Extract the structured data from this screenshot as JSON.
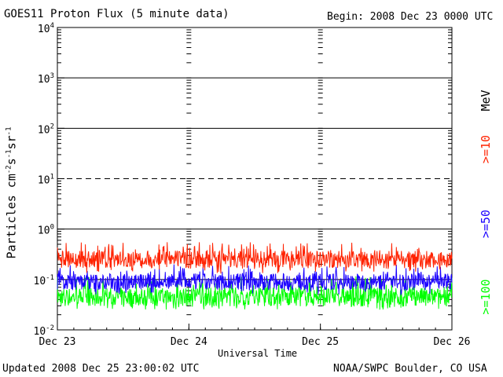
{
  "header": {
    "title": "GOES11 Proton Flux (5 minute data)",
    "begin": "Begin: 2008 Dec 23 0000 UTC"
  },
  "footer": {
    "updated": "Updated 2008 Dec 25 23:00:02 UTC",
    "credit": "NOAA/SWPC Boulder, CO USA"
  },
  "chart_data": {
    "type": "line",
    "title": "GOES11 Proton Flux (5 minute data)",
    "xlabel": "Universal Time",
    "ylabel": "Particles cm⁻²s⁻¹sr⁻¹",
    "y_scale": "log",
    "ylim": [
      0.01,
      10000
    ],
    "x_range": [
      "Dec 23",
      "Dec 26"
    ],
    "x_ticks": [
      "Dec 23",
      "Dec 24",
      "Dec 25",
      "Dec 26"
    ],
    "y_ticks": [
      {
        "value": 0.01,
        "base": "10",
        "exp": "-2"
      },
      {
        "value": 0.1,
        "base": "10",
        "exp": "-1"
      },
      {
        "value": 1,
        "base": "10",
        "exp": "0"
      },
      {
        "value": 10,
        "base": "10",
        "exp": "1"
      },
      {
        "value": 100,
        "base": "10",
        "exp": "2"
      },
      {
        "value": 1000,
        "base": "10",
        "exp": "3"
      },
      {
        "value": 10000,
        "base": "10",
        "exp": "4"
      }
    ],
    "threshold_lines": [
      {
        "value": 10,
        "style": "dashed"
      }
    ],
    "legend_title": "MeV",
    "series": [
      {
        "name": ">=10",
        "color": "#ff2200",
        "typical": 0.25,
        "min": 0.13,
        "max": 0.55
      },
      {
        "name": ">=50",
        "color": "#1a00ff",
        "typical": 0.09,
        "min": 0.05,
        "max": 0.2
      },
      {
        "name": ">=100",
        "color": "#00ff00",
        "typical": 0.045,
        "min": 0.025,
        "max": 0.12
      }
    ]
  }
}
